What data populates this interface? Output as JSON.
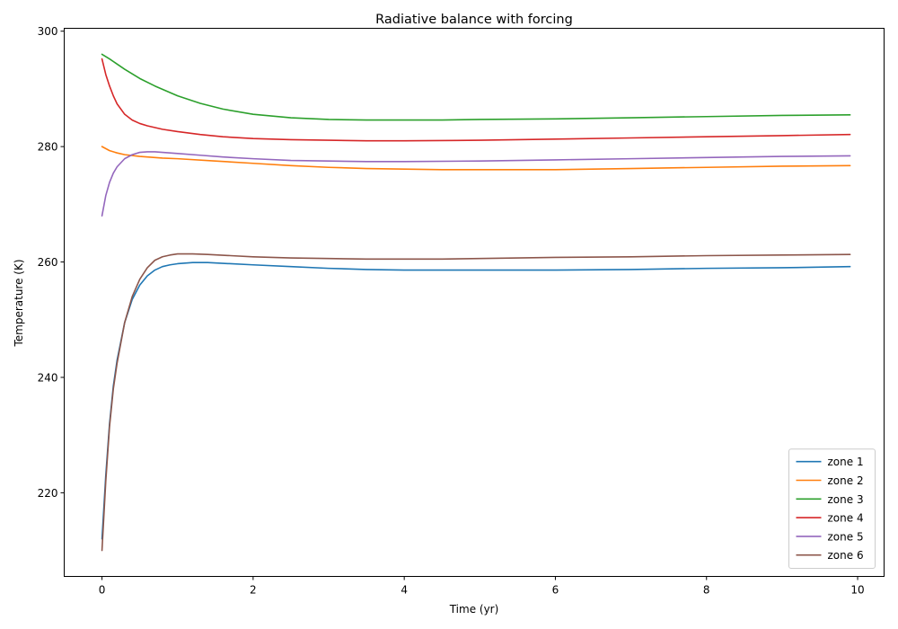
{
  "chart_data": {
    "type": "line",
    "title": "Radiative balance with forcing",
    "xlabel": "Time (yr)",
    "ylabel": "Temperature (K)",
    "xlim": [
      -0.5,
      10.35
    ],
    "ylim": [
      205.5,
      300.5
    ],
    "xticks": [
      0,
      2,
      4,
      6,
      8,
      10
    ],
    "yticks": [
      220,
      240,
      260,
      280,
      300
    ],
    "legend_position": "lower-right",
    "grid": false,
    "series": [
      {
        "name": "zone 1",
        "color": "#1f77b4",
        "x": [
          0,
          0.05,
          0.1,
          0.15,
          0.2,
          0.3,
          0.4,
          0.5,
          0.6,
          0.7,
          0.8,
          0.9,
          1.0,
          1.2,
          1.4,
          1.7,
          2.0,
          2.5,
          3.0,
          3.5,
          4.0,
          4.5,
          5.0,
          5.5,
          6.0,
          7.0,
          8.0,
          9.0,
          9.9
        ],
        "y": [
          212,
          223,
          232,
          238.5,
          243,
          249.5,
          253.5,
          256,
          257.6,
          258.6,
          259.2,
          259.5,
          259.7,
          259.9,
          259.9,
          259.7,
          259.5,
          259.2,
          258.9,
          258.7,
          258.6,
          258.6,
          258.6,
          258.6,
          258.6,
          258.7,
          258.9,
          259.0,
          259.2
        ]
      },
      {
        "name": "zone 2",
        "color": "#ff7f0e",
        "x": [
          0,
          0.1,
          0.2,
          0.3,
          0.5,
          0.8,
          1.0,
          1.5,
          2.0,
          2.5,
          3.0,
          3.5,
          4.0,
          4.5,
          5.0,
          5.5,
          6.0,
          7.0,
          8.0,
          9.0,
          9.9
        ],
        "y": [
          280,
          279.3,
          278.9,
          278.6,
          278.3,
          278.0,
          277.9,
          277.5,
          277.1,
          276.7,
          276.4,
          276.2,
          276.1,
          276.0,
          276.0,
          276.0,
          276.0,
          276.2,
          276.4,
          276.6,
          276.7
        ]
      },
      {
        "name": "zone 3",
        "color": "#2ca02c",
        "x": [
          0,
          0.1,
          0.2,
          0.3,
          0.5,
          0.7,
          1.0,
          1.3,
          1.6,
          2.0,
          2.5,
          3.0,
          3.5,
          4.0,
          4.5,
          5.0,
          6.0,
          7.0,
          8.0,
          9.0,
          9.9
        ],
        "y": [
          296,
          295.2,
          294.3,
          293.4,
          291.8,
          290.5,
          288.8,
          287.5,
          286.5,
          285.6,
          285.0,
          284.7,
          284.6,
          284.6,
          284.6,
          284.7,
          284.8,
          285.0,
          285.2,
          285.4,
          285.5
        ]
      },
      {
        "name": "zone 4",
        "color": "#d62728",
        "x": [
          0,
          0.05,
          0.1,
          0.15,
          0.2,
          0.3,
          0.4,
          0.5,
          0.6,
          0.8,
          1.0,
          1.3,
          1.6,
          2.0,
          2.5,
          3.0,
          3.5,
          4.0,
          5.0,
          6.0,
          7.0,
          8.0,
          9.0,
          9.9
        ],
        "y": [
          295.2,
          292.5,
          290.5,
          288.8,
          287.4,
          285.6,
          284.6,
          284.0,
          283.6,
          283.0,
          282.6,
          282.1,
          281.7,
          281.4,
          281.2,
          281.1,
          281.0,
          281.0,
          281.1,
          281.3,
          281.5,
          281.7,
          281.9,
          282.1
        ]
      },
      {
        "name": "zone 5",
        "color": "#9467bd",
        "x": [
          0,
          0.05,
          0.1,
          0.15,
          0.2,
          0.3,
          0.4,
          0.5,
          0.6,
          0.7,
          0.8,
          1.0,
          1.3,
          1.6,
          2.0,
          2.5,
          3.0,
          3.5,
          4.0,
          5.0,
          6.0,
          7.0,
          8.0,
          9.0,
          9.9
        ],
        "y": [
          268,
          271.5,
          273.8,
          275.4,
          276.5,
          277.9,
          278.6,
          279.0,
          279.1,
          279.1,
          279.0,
          278.8,
          278.5,
          278.2,
          277.9,
          277.6,
          277.5,
          277.4,
          277.4,
          277.5,
          277.7,
          277.9,
          278.1,
          278.3,
          278.4
        ]
      },
      {
        "name": "zone 6",
        "color": "#8c564b",
        "x": [
          0,
          0.05,
          0.1,
          0.15,
          0.2,
          0.3,
          0.4,
          0.5,
          0.6,
          0.7,
          0.8,
          0.9,
          1.0,
          1.1,
          1.2,
          1.4,
          1.7,
          2.0,
          2.5,
          3.0,
          3.5,
          4.0,
          4.5,
          5.0,
          6.0,
          7.0,
          8.0,
          9.0,
          9.9
        ],
        "y": [
          210,
          222,
          231.5,
          238,
          242.5,
          249.5,
          254,
          257,
          259,
          260.3,
          260.9,
          261.2,
          261.4,
          261.4,
          261.4,
          261.3,
          261.1,
          260.9,
          260.7,
          260.6,
          260.5,
          260.5,
          260.5,
          260.6,
          260.8,
          260.9,
          261.1,
          261.2,
          261.3
        ]
      }
    ]
  }
}
